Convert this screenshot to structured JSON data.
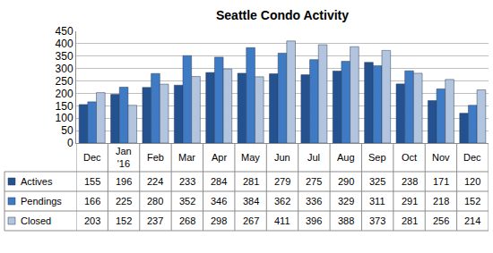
{
  "chart_data": {
    "type": "bar",
    "title": "Seattle Condo Activity",
    "categories": [
      "Dec",
      "Jan '16",
      "Feb",
      "Mar",
      "Apr",
      "May",
      "Jun",
      "Jul",
      "Aug",
      "Sep",
      "Oct",
      "Nov",
      "Dec"
    ],
    "series": [
      {
        "name": "Actives",
        "color": "#24518f",
        "values": [
          155,
          196,
          224,
          233,
          284,
          281,
          279,
          275,
          290,
          325,
          238,
          171,
          120
        ]
      },
      {
        "name": "Pendings",
        "color": "#3f7bc4",
        "values": [
          166,
          225,
          280,
          352,
          346,
          384,
          362,
          336,
          329,
          311,
          291,
          218,
          152
        ]
      },
      {
        "name": "Closed",
        "color": "#b3c5de",
        "values": [
          203,
          152,
          237,
          268,
          298,
          267,
          411,
          396,
          388,
          373,
          281,
          256,
          214
        ]
      }
    ],
    "ylim": [
      0,
      450
    ],
    "yticks": [
      0,
      50,
      100,
      150,
      200,
      250,
      300,
      350,
      400,
      450
    ],
    "grid": true
  }
}
